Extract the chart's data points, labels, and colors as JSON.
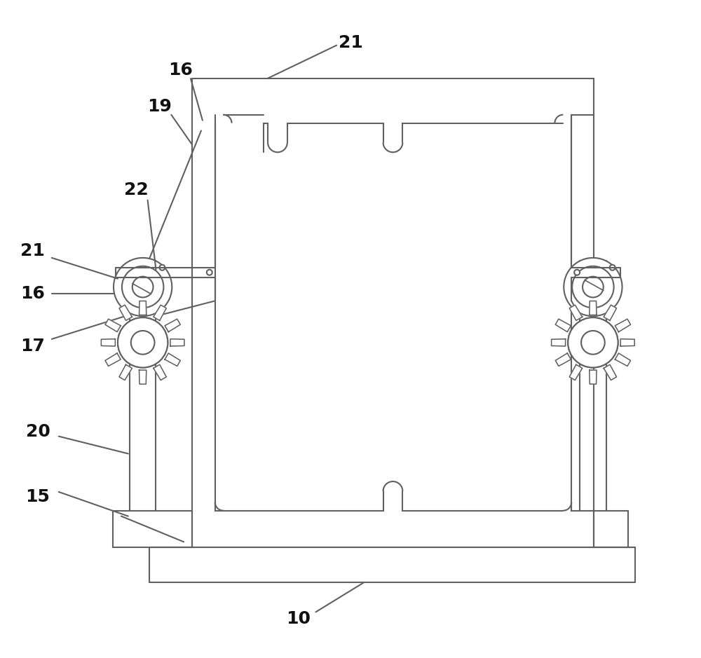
{
  "bg_color": "#ffffff",
  "line_color": "#606060",
  "line_width": 1.5,
  "fig_width": 10.0,
  "fig_height": 9.39,
  "label_fs": 18,
  "label_color": "#111111"
}
